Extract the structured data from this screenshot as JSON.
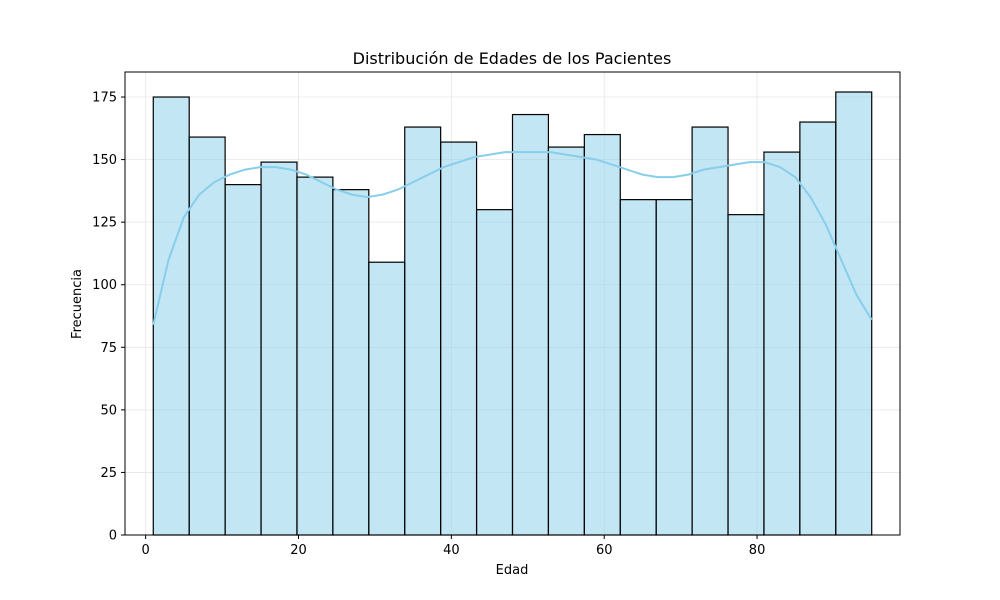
{
  "chart_data": {
    "type": "bar",
    "subtype": "histogram",
    "title": "Distribución de Edades de los Pacientes",
    "xlabel": "Edad",
    "ylabel": "Frecuencia",
    "xlim": [
      -2.7,
      98.7
    ],
    "ylim": [
      0,
      185
    ],
    "grid": true,
    "xticks": [
      0,
      20,
      40,
      60,
      80
    ],
    "yticks": [
      0,
      25,
      50,
      75,
      100,
      125,
      150,
      175
    ],
    "bin_edges": [
      1,
      5.7,
      10.4,
      15.1,
      19.8,
      24.5,
      29.2,
      33.9,
      38.6,
      43.3,
      48,
      52.7,
      57.4,
      62.1,
      66.8,
      71.5,
      76.2,
      80.9,
      85.6,
      90.3,
      95
    ],
    "values": [
      175,
      159,
      140,
      149,
      143,
      138,
      109,
      163,
      157,
      130,
      168,
      155,
      160,
      134,
      134,
      163,
      128,
      153,
      165,
      177
    ],
    "bar_color": "#87ceeb",
    "kde": {
      "x": [
        1,
        3,
        5,
        7,
        9,
        11,
        13,
        15,
        17,
        19,
        21,
        23,
        25,
        27,
        29,
        31,
        33,
        35,
        37,
        39,
        41,
        43,
        45,
        47,
        49,
        51,
        53,
        55,
        57,
        59,
        61,
        63,
        65,
        67,
        69,
        71,
        73,
        75,
        77,
        79,
        81,
        83,
        85,
        87,
        89,
        91,
        93,
        95
      ],
      "y": [
        84,
        110,
        127,
        136,
        141,
        144,
        146,
        147,
        147,
        146,
        144,
        141,
        138,
        136,
        135,
        136,
        138,
        141,
        144,
        147,
        149,
        151,
        152,
        153,
        153,
        153,
        153,
        152,
        151,
        150,
        148,
        146,
        144,
        143,
        143,
        144,
        146,
        147,
        148,
        149,
        149,
        147,
        143,
        135,
        124,
        110,
        96,
        86
      ],
      "color": "#87ceeb"
    }
  }
}
